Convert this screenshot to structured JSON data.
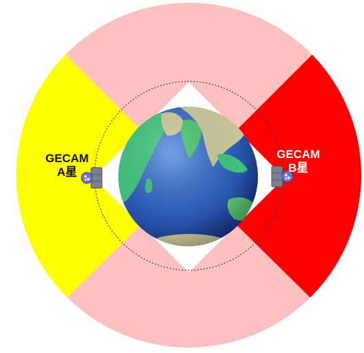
{
  "colors": {
    "background": "#ffffff",
    "satellite_a_coverage": "#ffff00",
    "satellite_b_coverage": "#ff0000",
    "overlap_coverage": "#ffc0c0",
    "orbit_line": "#2a3f5f",
    "ocean": "#2e63b8",
    "land": "#3fc27a",
    "desert": "#c9c79a"
  },
  "satellite_a": {
    "name": "GECAM",
    "designation": "A星",
    "label_color": "#111111",
    "icon": "satellite-icon"
  },
  "satellite_b": {
    "name": "GECAM",
    "designation": "B星",
    "label_color": "#ffffff",
    "icon": "satellite-icon"
  },
  "earth": {
    "icon": "earth-globe-icon"
  }
}
